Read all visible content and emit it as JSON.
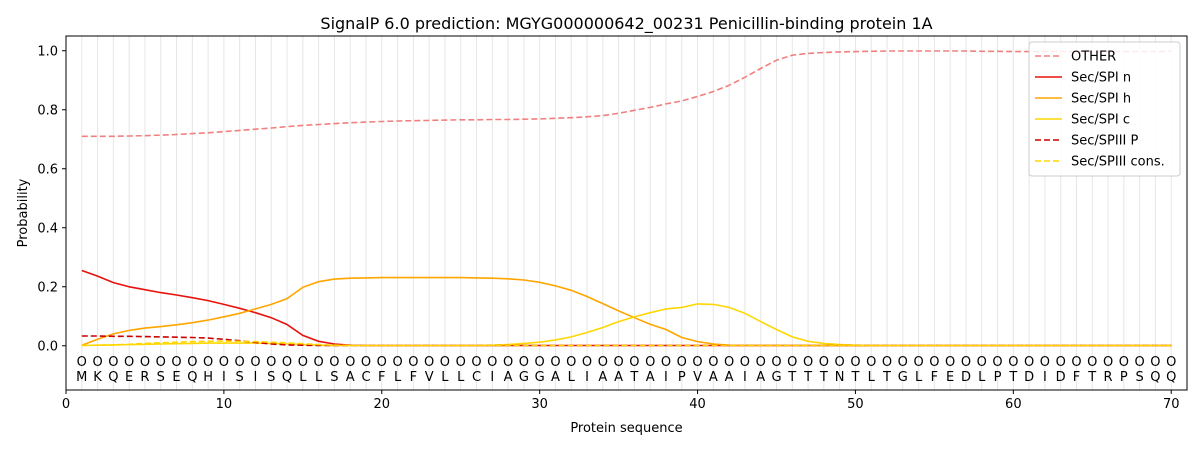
{
  "chart_data": {
    "type": "line",
    "title": "SignalP 6.0 prediction: MGYG000000642_00231 Penicillin-binding protein 1A",
    "xlabel": "Protein sequence",
    "ylabel": "Probability",
    "xlim": [
      0,
      71
    ],
    "ylim": [
      -0.15,
      1.05
    ],
    "xticks": [
      0,
      10,
      20,
      30,
      40,
      50,
      60,
      70
    ],
    "yticks": [
      0.0,
      0.2,
      0.4,
      0.6,
      0.8,
      1.0
    ],
    "grid": "vertical lines at each residue",
    "legend_position": "top-right",
    "sequence": [
      "M",
      "K",
      "Q",
      "E",
      "R",
      "S",
      "E",
      "Q",
      "H",
      "I",
      "S",
      "I",
      "S",
      "Q",
      "L",
      "L",
      "S",
      "A",
      "C",
      "F",
      "L",
      "F",
      "V",
      "L",
      "L",
      "C",
      "I",
      "A",
      "G",
      "G",
      "A",
      "L",
      "I",
      "A",
      "A",
      "T",
      "A",
      "I",
      "P",
      "V",
      "A",
      "A",
      "I",
      "A",
      "G",
      "T",
      "T",
      "T",
      "N",
      "T",
      "L",
      "T",
      "G",
      "L",
      "F",
      "E",
      "D",
      "L",
      "P",
      "T",
      "D",
      "I",
      "D",
      "F",
      "T",
      "R",
      "P",
      "S",
      "Q",
      "Q"
    ],
    "region_marker": "O",
    "x": [
      1,
      2,
      3,
      4,
      5,
      6,
      7,
      8,
      9,
      10,
      11,
      12,
      13,
      14,
      15,
      16,
      17,
      18,
      19,
      20,
      21,
      22,
      23,
      24,
      25,
      26,
      27,
      28,
      29,
      30,
      31,
      32,
      33,
      34,
      35,
      36,
      37,
      38,
      39,
      40,
      41,
      42,
      43,
      44,
      45,
      46,
      47,
      48,
      49,
      50,
      51,
      52,
      53,
      54,
      55,
      56,
      57,
      58,
      59,
      60,
      61,
      62,
      63,
      64,
      65,
      66,
      67,
      68,
      69,
      70
    ],
    "series": [
      {
        "name": "OTHER",
        "color": "#f08080",
        "dash": true,
        "values": [
          0.71,
          0.71,
          0.71,
          0.711,
          0.712,
          0.714,
          0.716,
          0.719,
          0.722,
          0.726,
          0.73,
          0.734,
          0.738,
          0.743,
          0.747,
          0.75,
          0.753,
          0.756,
          0.758,
          0.76,
          0.762,
          0.763,
          0.764,
          0.765,
          0.766,
          0.766,
          0.767,
          0.767,
          0.768,
          0.769,
          0.771,
          0.773,
          0.776,
          0.78,
          0.788,
          0.798,
          0.808,
          0.82,
          0.83,
          0.845,
          0.862,
          0.883,
          0.91,
          0.94,
          0.968,
          0.985,
          0.991,
          0.994,
          0.996,
          0.997,
          0.998,
          0.999,
          0.999,
          0.999,
          0.999,
          0.999,
          0.999,
          0.998,
          0.998,
          0.997,
          0.997,
          0.997,
          0.997,
          0.997,
          0.997,
          0.997,
          0.997,
          0.997,
          0.997,
          0.998
        ]
      },
      {
        "name": "Sec/SPI n",
        "color": "#e8120c",
        "dash": false,
        "values": [
          0.255,
          0.236,
          0.214,
          0.2,
          0.19,
          0.18,
          0.172,
          0.163,
          0.153,
          0.14,
          0.127,
          0.112,
          0.095,
          0.072,
          0.035,
          0.015,
          0.006,
          0.002,
          0.001,
          0.001,
          0.001,
          0.001,
          0.001,
          0.001,
          0.001,
          0.001,
          0.001,
          0.001,
          0.001,
          0.001,
          0.001,
          0.001,
          0.001,
          0.001,
          0.001,
          0.001,
          0.001,
          0.001,
          0.001,
          0.001,
          0.001,
          0.001,
          0.001,
          0.001,
          0.001,
          0.001,
          0.001,
          0.001,
          0.001,
          0.001,
          0.001,
          0.001,
          0.001,
          0.001,
          0.001,
          0.001,
          0.001,
          0.001,
          0.001,
          0.001,
          0.001,
          0.001,
          0.001,
          0.001,
          0.001,
          0.001,
          0.001,
          0.001,
          0.001,
          0.001
        ]
      },
      {
        "name": "Sec/SPI h",
        "color": "#ffa500",
        "dash": false,
        "values": [
          0.002,
          0.022,
          0.04,
          0.052,
          0.06,
          0.065,
          0.071,
          0.078,
          0.087,
          0.098,
          0.11,
          0.125,
          0.14,
          0.16,
          0.198,
          0.217,
          0.226,
          0.229,
          0.23,
          0.231,
          0.231,
          0.231,
          0.231,
          0.231,
          0.231,
          0.23,
          0.229,
          0.227,
          0.223,
          0.215,
          0.203,
          0.188,
          0.167,
          0.143,
          0.118,
          0.095,
          0.073,
          0.055,
          0.028,
          0.014,
          0.006,
          0.002,
          0.001,
          0.001,
          0.001,
          0.001,
          0.001,
          0.001,
          0.001,
          0.001,
          0.001,
          0.001,
          0.001,
          0.001,
          0.001,
          0.001,
          0.001,
          0.001,
          0.001,
          0.001,
          0.001,
          0.001,
          0.001,
          0.001,
          0.001,
          0.001,
          0.001,
          0.001,
          0.001,
          0.001
        ]
      },
      {
        "name": "Sec/SPI c",
        "color": "#ffd700",
        "dash": false,
        "values": [
          0.001,
          0.002,
          0.003,
          0.004,
          0.005,
          0.006,
          0.007,
          0.008,
          0.009,
          0.009,
          0.009,
          0.009,
          0.008,
          0.006,
          0.004,
          0.002,
          0.001,
          0.001,
          0.001,
          0.001,
          0.001,
          0.001,
          0.001,
          0.001,
          0.001,
          0.001,
          0.002,
          0.004,
          0.008,
          0.012,
          0.02,
          0.03,
          0.045,
          0.062,
          0.082,
          0.098,
          0.112,
          0.125,
          0.13,
          0.142,
          0.14,
          0.13,
          0.11,
          0.082,
          0.055,
          0.03,
          0.015,
          0.008,
          0.004,
          0.002,
          0.001,
          0.001,
          0.001,
          0.001,
          0.001,
          0.001,
          0.001,
          0.001,
          0.001,
          0.001,
          0.001,
          0.001,
          0.001,
          0.001,
          0.001,
          0.001,
          0.001,
          0.001,
          0.001,
          0.001
        ]
      },
      {
        "name": "Sec/SPIII P",
        "color": "#cc0000",
        "dash": true,
        "values": [
          0.033,
          0.033,
          0.032,
          0.032,
          0.031,
          0.03,
          0.029,
          0.028,
          0.026,
          0.022,
          0.017,
          0.011,
          0.006,
          0.003,
          0.002,
          0.001,
          0.001,
          0.001,
          0.001,
          0.001,
          0.001,
          0.001,
          0.001,
          0.001,
          0.001,
          0.001,
          0.001,
          0.001,
          0.001,
          0.001,
          0.001,
          0.001,
          0.001,
          0.001,
          0.001,
          0.001,
          0.001,
          0.001,
          0.001,
          0.001,
          0.001,
          0.001,
          0.001,
          0.001,
          0.001,
          0.001,
          0.001,
          0.001,
          0.001,
          0.001,
          0.001,
          0.001,
          0.001,
          0.001,
          0.001,
          0.001,
          0.001,
          0.001,
          0.001,
          0.001,
          0.001,
          0.001,
          0.001,
          0.001,
          0.001,
          0.001,
          0.001,
          0.001,
          0.001,
          0.001
        ]
      },
      {
        "name": "Sec/SPIII cons.",
        "color": "#ffd700",
        "dash": true,
        "values": [
          0.001,
          0.002,
          0.003,
          0.005,
          0.008,
          0.01,
          0.012,
          0.014,
          0.015,
          0.016,
          0.015,
          0.014,
          0.012,
          0.01,
          0.007,
          0.004,
          0.002,
          0.001,
          0.001,
          0.001,
          0.001,
          0.001,
          0.001,
          0.001,
          0.001,
          0.001,
          0.001,
          0.001,
          0.001,
          0.001,
          0.001,
          0.001,
          0.001,
          0.001,
          0.001,
          0.001,
          0.001,
          0.001,
          0.001,
          0.001,
          0.001,
          0.001,
          0.001,
          0.001,
          0.001,
          0.001,
          0.001,
          0.001,
          0.001,
          0.001,
          0.001,
          0.001,
          0.001,
          0.001,
          0.001,
          0.001,
          0.001,
          0.001,
          0.001,
          0.001,
          0.001,
          0.001,
          0.001,
          0.001,
          0.001,
          0.001,
          0.001,
          0.001,
          0.001,
          0.001
        ]
      }
    ]
  }
}
